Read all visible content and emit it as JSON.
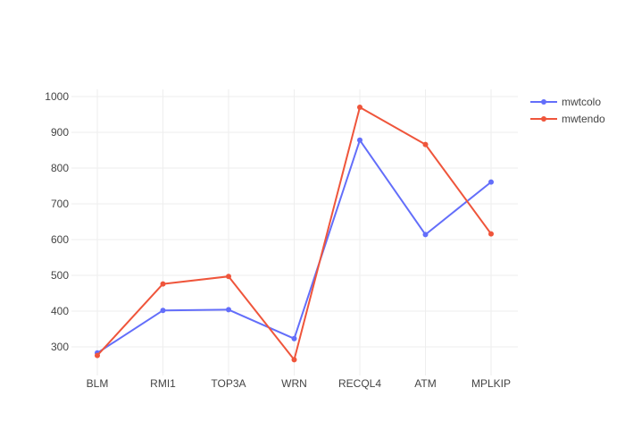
{
  "chart_data": {
    "type": "line",
    "title": "",
    "xlabel": "",
    "ylabel": "",
    "categories": [
      "BLM",
      "RMI1",
      "TOP3A",
      "WRN",
      "RECQL4",
      "ATM",
      "MPLKIP"
    ],
    "ylim": [
      220,
      1020
    ],
    "yticks": [
      300,
      400,
      500,
      600,
      700,
      800,
      900,
      1000
    ],
    "grid": true,
    "legend_position": "top-right",
    "series": [
      {
        "name": "mwtcolo",
        "color": "#636efa",
        "values": [
          283,
          402,
          404,
          323,
          878,
          614,
          761
        ]
      },
      {
        "name": "mwtendo",
        "color": "#ef553b",
        "values": [
          276,
          476,
          497,
          264,
          970,
          866,
          616
        ]
      }
    ]
  }
}
